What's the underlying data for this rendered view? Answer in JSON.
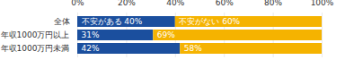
{
  "chart_data": {
    "type": "bar",
    "orientation": "horizontal",
    "stacked": true,
    "data_labels": true,
    "grid": true,
    "categories": [
      "全体",
      "年収1000万円以上",
      "年収1000万円未満"
    ],
    "series": [
      {
        "name": "不安がある",
        "color": "#1b4f9e",
        "values": [
          40,
          31,
          42
        ],
        "value_labels": [
          "不安がある 40%",
          "31%",
          "42%"
        ]
      },
      {
        "name": "不安がない",
        "color": "#f5b300",
        "values": [
          60,
          69,
          58
        ],
        "value_labels": [
          "不安がない 60%",
          "69%",
          "58%"
        ]
      }
    ],
    "xlim": [
      0,
      100
    ],
    "xticks": [
      {
        "value": 0,
        "label": "0%"
      },
      {
        "value": 20,
        "label": "20%"
      },
      {
        "value": 40,
        "label": "40%"
      },
      {
        "value": 60,
        "label": "60%"
      },
      {
        "value": 80,
        "label": "80%"
      },
      {
        "value": 100,
        "label": "100%"
      }
    ]
  }
}
